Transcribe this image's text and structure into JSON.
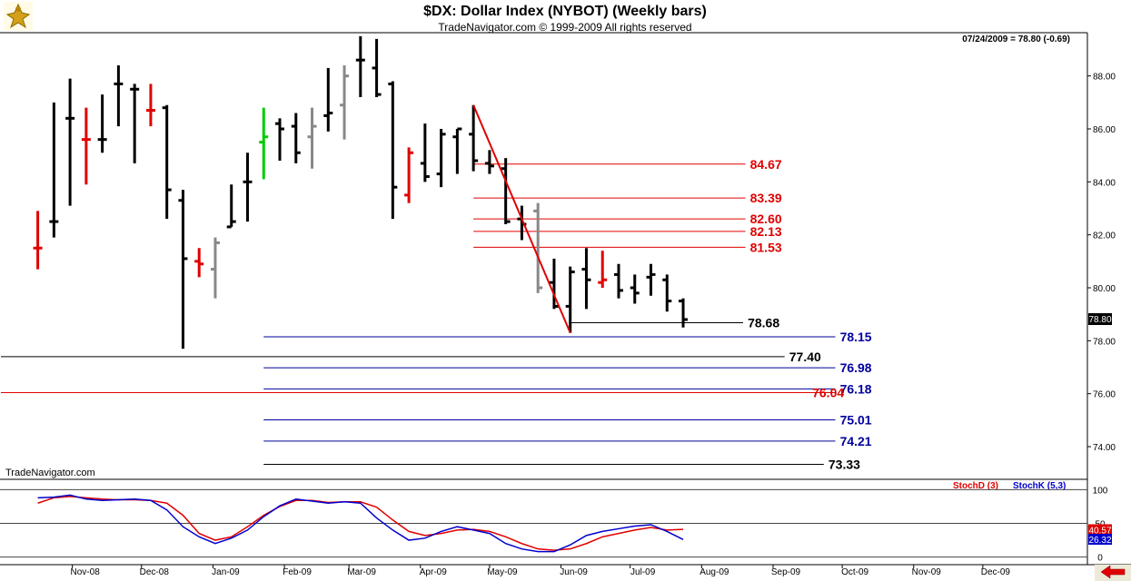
{
  "header": {
    "title": "$DX:  Dollar Index (NYBOT)  (Weekly bars)",
    "subtitle": "TradeNavigator.com © 1999-2009 All rights reserved",
    "readout": "07/24/2009 = 78.80 (-0.69)"
  },
  "watermark": "TradeNavigator.com",
  "icons": {
    "logo": "gold-figure-logo-icon",
    "nav_arrow": "red-left-arrow-icon"
  },
  "colors": {
    "up_bar": "#000000",
    "down_bar": "#e00000",
    "green_bar": "#00cc00",
    "gray_bar": "#888888",
    "resistance": "#e00000",
    "support": "#00009e",
    "stoch_d": "#e00000",
    "stoch_k": "#0000cc"
  },
  "chart_data": [
    {
      "type": "ohlc",
      "title": "$DX:  Dollar Index (NYBOT)  (Weekly bars)",
      "x_tick_labels": [
        "Nov-08",
        "Dec-08",
        "Jan-09",
        "Feb-09",
        "Mar-09",
        "Apr-09",
        "May-09",
        "Jun-09",
        "Jul-09",
        "Aug-09",
        "Sep-09",
        "Oct-09",
        "Nov-09",
        "Dec-09"
      ],
      "y_ticks": [
        "88.00",
        "86.00",
        "84.00",
        "82.00",
        "80.00",
        "78.00",
        "76.00",
        "74.00"
      ],
      "ylim": [
        72.8,
        89.6
      ],
      "last_price_label": "78.80",
      "bars": [
        {
          "x": "2008-10-17",
          "o": 81.5,
          "h": 82.9,
          "l": 80.7,
          "c": 81.5,
          "color": "red"
        },
        {
          "x": "2008-10-24",
          "o": 82.5,
          "h": 87.0,
          "l": 81.9,
          "c": 82.5,
          "color": "black"
        },
        {
          "x": "2008-10-31",
          "o": 86.4,
          "h": 87.9,
          "l": 83.1,
          "c": 86.4,
          "color": "black"
        },
        {
          "x": "2008-11-07",
          "o": 85.6,
          "h": 86.8,
          "l": 83.9,
          "c": 85.6,
          "color": "red"
        },
        {
          "x": "2008-11-14",
          "o": 85.6,
          "h": 87.3,
          "l": 85.1,
          "c": 85.6,
          "color": "black"
        },
        {
          "x": "2008-11-21",
          "o": 87.7,
          "h": 88.4,
          "l": 86.1,
          "c": 87.7,
          "color": "black"
        },
        {
          "x": "2008-11-28",
          "o": 87.5,
          "h": 87.7,
          "l": 84.7,
          "c": 87.5,
          "color": "black"
        },
        {
          "x": "2008-12-05",
          "o": 86.7,
          "h": 87.7,
          "l": 86.1,
          "c": 86.7,
          "color": "red"
        },
        {
          "x": "2008-12-12",
          "o": 86.8,
          "h": 86.9,
          "l": 82.6,
          "c": 83.7,
          "color": "black"
        },
        {
          "x": "2008-12-19",
          "o": 83.3,
          "h": 83.7,
          "l": 77.7,
          "c": 81.1,
          "color": "black"
        },
        {
          "x": "2008-12-26",
          "o": 81.0,
          "h": 81.5,
          "l": 80.4,
          "c": 80.9,
          "color": "red"
        },
        {
          "x": "2009-01-02",
          "o": 80.7,
          "h": 81.9,
          "l": 79.6,
          "c": 81.7,
          "color": "gray"
        },
        {
          "x": "2009-01-09",
          "o": 82.3,
          "h": 83.9,
          "l": 82.3,
          "c": 82.5,
          "color": "black"
        },
        {
          "x": "2009-01-16",
          "o": 84.0,
          "h": 85.1,
          "l": 82.5,
          "c": 84.0,
          "color": "black"
        },
        {
          "x": "2009-01-23",
          "o": 85.5,
          "h": 86.8,
          "l": 84.1,
          "c": 85.7,
          "color": "green"
        },
        {
          "x": "2009-01-30",
          "o": 86.2,
          "h": 86.4,
          "l": 84.8,
          "c": 86.0,
          "color": "black"
        },
        {
          "x": "2009-02-06",
          "o": 86.1,
          "h": 86.6,
          "l": 84.7,
          "c": 85.1,
          "color": "black"
        },
        {
          "x": "2009-02-13",
          "o": 85.7,
          "h": 86.8,
          "l": 84.5,
          "c": 86.1,
          "color": "gray"
        },
        {
          "x": "2009-02-20",
          "o": 86.5,
          "h": 88.3,
          "l": 85.9,
          "c": 86.6,
          "color": "black"
        },
        {
          "x": "2009-02-27",
          "o": 86.9,
          "h": 88.4,
          "l": 85.6,
          "c": 88.0,
          "color": "gray"
        },
        {
          "x": "2009-03-06",
          "o": 88.6,
          "h": 89.5,
          "l": 87.2,
          "c": 88.6,
          "color": "black"
        },
        {
          "x": "2009-03-13",
          "o": 88.3,
          "h": 89.4,
          "l": 87.2,
          "c": 87.3,
          "color": "black"
        },
        {
          "x": "2009-03-20",
          "o": 87.7,
          "h": 87.8,
          "l": 82.6,
          "c": 83.8,
          "color": "black"
        },
        {
          "x": "2009-03-27",
          "o": 83.5,
          "h": 85.3,
          "l": 83.2,
          "c": 85.1,
          "color": "red"
        },
        {
          "x": "2009-04-03",
          "o": 84.7,
          "h": 86.2,
          "l": 84.0,
          "c": 84.2,
          "color": "black"
        },
        {
          "x": "2009-04-10",
          "o": 84.3,
          "h": 86.0,
          "l": 83.8,
          "c": 85.8,
          "color": "black"
        },
        {
          "x": "2009-04-17",
          "o": 85.7,
          "h": 86.0,
          "l": 84.3,
          "c": 86.0,
          "color": "black"
        },
        {
          "x": "2009-04-24",
          "o": 85.8,
          "h": 86.9,
          "l": 84.4,
          "c": 84.8,
          "color": "black"
        },
        {
          "x": "2009-05-01",
          "o": 84.7,
          "h": 85.2,
          "l": 84.3,
          "c": 84.6,
          "color": "black"
        },
        {
          "x": "2009-05-08",
          "o": 84.5,
          "h": 84.9,
          "l": 82.4,
          "c": 82.5,
          "color": "black"
        },
        {
          "x": "2009-05-15",
          "o": 82.6,
          "h": 83.1,
          "l": 81.8,
          "c": 82.4,
          "color": "black"
        },
        {
          "x": "2009-05-22",
          "o": 82.9,
          "h": 83.2,
          "l": 79.8,
          "c": 80.0,
          "color": "gray"
        },
        {
          "x": "2009-05-29",
          "o": 80.2,
          "h": 81.1,
          "l": 79.2,
          "c": 79.3,
          "color": "black"
        },
        {
          "x": "2009-06-05",
          "o": 79.3,
          "h": 80.8,
          "l": 78.3,
          "c": 80.6,
          "color": "black"
        },
        {
          "x": "2009-06-12",
          "o": 80.7,
          "h": 81.5,
          "l": 79.2,
          "c": 80.3,
          "color": "black"
        },
        {
          "x": "2009-06-19",
          "o": 80.2,
          "h": 81.4,
          "l": 80.0,
          "c": 80.3,
          "color": "red"
        },
        {
          "x": "2009-06-26",
          "o": 80.5,
          "h": 80.9,
          "l": 79.6,
          "c": 79.9,
          "color": "black"
        },
        {
          "x": "2009-07-03",
          "o": 80.0,
          "h": 80.5,
          "l": 79.4,
          "c": 79.8,
          "color": "black"
        },
        {
          "x": "2009-07-10",
          "o": 80.4,
          "h": 80.9,
          "l": 79.7,
          "c": 80.5,
          "color": "black"
        },
        {
          "x": "2009-07-17",
          "o": 80.3,
          "h": 80.5,
          "l": 79.1,
          "c": 79.5,
          "color": "black"
        },
        {
          "x": "2009-07-24",
          "o": 79.5,
          "h": 79.6,
          "l": 78.5,
          "c": 78.8,
          "color": "black"
        }
      ],
      "resistance_levels": [
        {
          "label": "84.67",
          "value": 84.67
        },
        {
          "label": "83.39",
          "value": 83.39
        },
        {
          "label": "82.60",
          "value": 82.6
        },
        {
          "label": "82.13",
          "value": 82.13
        },
        {
          "label": "81.53",
          "value": 81.53
        }
      ],
      "support_levels": [
        {
          "label": "78.15",
          "value": 78.15
        },
        {
          "label": "76.98",
          "value": 76.98
        },
        {
          "label": "76.18",
          "value": 76.18
        },
        {
          "label": "75.01",
          "value": 75.01
        },
        {
          "label": "74.21",
          "value": 74.21
        }
      ],
      "other_levels": [
        {
          "label": "78.68",
          "value": 78.68,
          "color": "black"
        },
        {
          "label": "77.40",
          "value": 77.4,
          "color": "black"
        },
        {
          "label": "76.04",
          "value": 76.04,
          "color": "red"
        },
        {
          "label": "73.33",
          "value": 73.33,
          "color": "black"
        }
      ],
      "trendline": {
        "from": {
          "x": "2009-04-24",
          "y": 86.9
        },
        "to": {
          "x": "2009-06-05",
          "y": 78.3
        }
      }
    },
    {
      "type": "line",
      "title": "",
      "legend": [
        "StochD (3)",
        "StochK (5,3)"
      ],
      "y_ticks": [
        "100",
        "50",
        "0"
      ],
      "ylim": [
        -10,
        110
      ],
      "value_labels": [
        "40.57",
        "26.32"
      ],
      "series": [
        {
          "name": "StochD (3)",
          "values": [
            80,
            88,
            90,
            88,
            86,
            85,
            85,
            84,
            80,
            62,
            35,
            25,
            30,
            45,
            62,
            75,
            84,
            84,
            81,
            82,
            82,
            74,
            55,
            38,
            32,
            35,
            40,
            41,
            38,
            30,
            20,
            12,
            10,
            12,
            20,
            30,
            35,
            40,
            44,
            40,
            41
          ]
        },
        {
          "name": "StochK (5,3)",
          "values": [
            88,
            89,
            92,
            86,
            84,
            85,
            86,
            84,
            70,
            45,
            30,
            20,
            28,
            40,
            60,
            76,
            86,
            83,
            80,
            82,
            80,
            58,
            40,
            25,
            28,
            38,
            45,
            40,
            35,
            20,
            12,
            8,
            8,
            18,
            32,
            38,
            42,
            46,
            48,
            38,
            26
          ]
        }
      ]
    }
  ]
}
